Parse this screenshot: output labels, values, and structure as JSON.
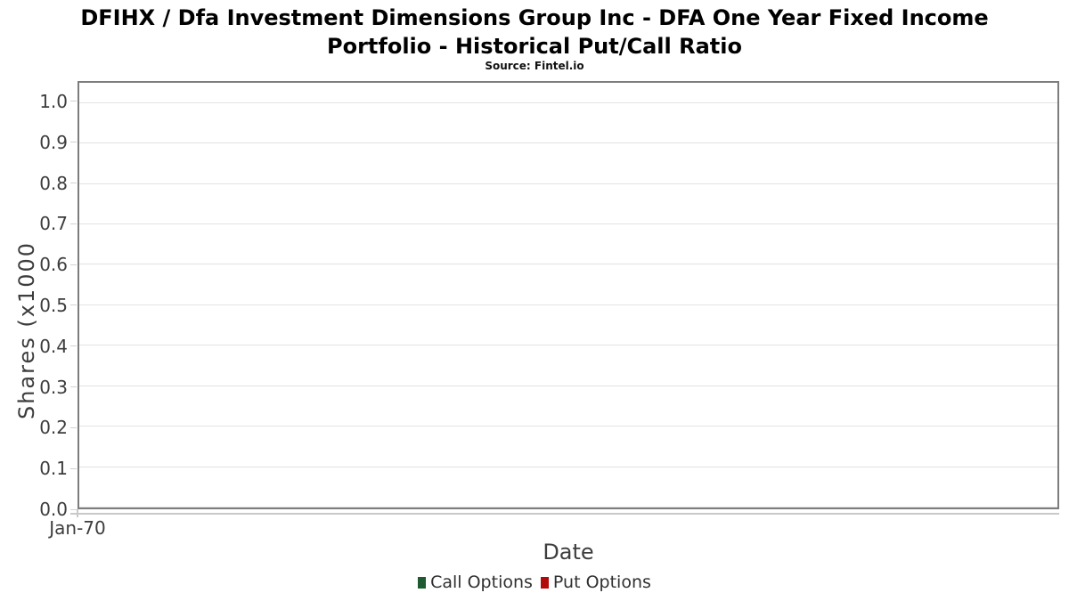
{
  "header": {
    "title": "DFIHX / Dfa Investment Dimensions Group Inc - DFA One Year Fixed Income Portfolio - Historical Put/Call Ratio",
    "subtitle": "Source: Fintel.io"
  },
  "chart_data": {
    "type": "line",
    "title": "DFIHX / Dfa Investment Dimensions Group Inc - DFA One Year Fixed Income Portfolio - Historical Put/Call Ratio",
    "subtitle": "Source: Fintel.io",
    "xlabel": "Date",
    "ylabel": "Shares (x1000",
    "x_ticks": [
      "Jan-70"
    ],
    "y_ticks": [
      "0.0",
      "0.1",
      "0.2",
      "0.3",
      "0.4",
      "0.5",
      "0.6",
      "0.7",
      "0.8",
      "0.9",
      "1.0"
    ],
    "ylim": [
      0,
      1.05
    ],
    "grid": "horizontal",
    "legend_position": "bottom",
    "series": [
      {
        "name": "Call Options",
        "color": "#1e5b31",
        "x": [],
        "values": []
      },
      {
        "name": "Put Options",
        "color": "#b20b0b",
        "x": [],
        "values": []
      }
    ]
  },
  "legend": {
    "items": [
      {
        "label": "Call Options",
        "color": "#1e5b31"
      },
      {
        "label": "Put Options",
        "color": "#b20b0b"
      }
    ]
  }
}
